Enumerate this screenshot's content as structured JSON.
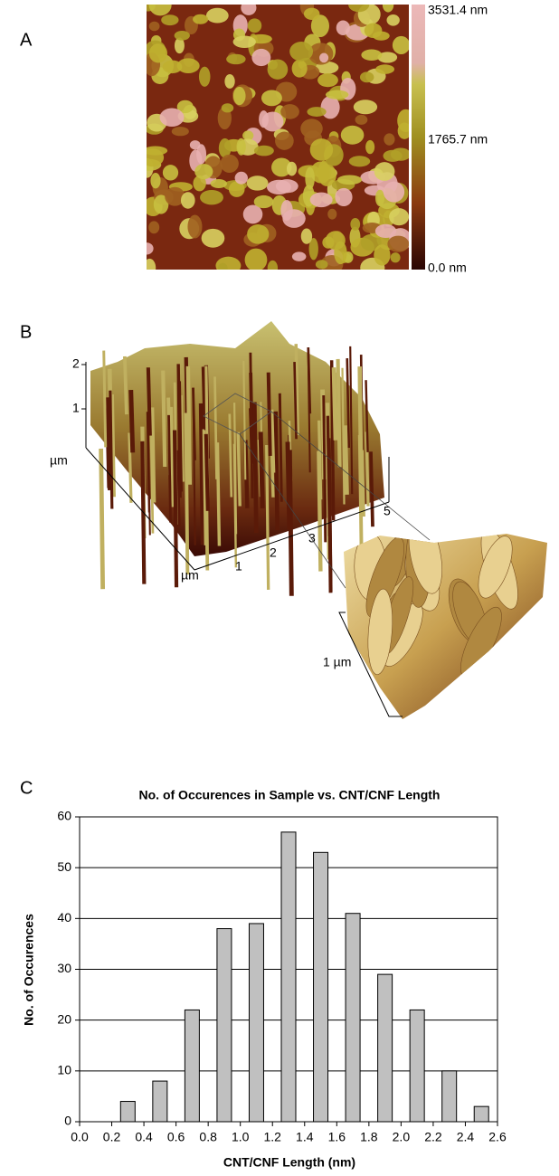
{
  "panel_a": {
    "label": "A",
    "colorbar_labels": [
      "3531.4 nm",
      "1765.7 nm",
      "0.0 nm"
    ]
  },
  "panel_b": {
    "label": "B",
    "z_ticks": [
      "2",
      "1"
    ],
    "z_unit": "µm",
    "x_unit": "µm",
    "x_ticks": [
      "1",
      "2",
      "3",
      "5"
    ],
    "inset_scale": "1 µm"
  },
  "chart_data": {
    "type": "bar",
    "panel_label": "C",
    "title": "No. of Occurences in Sample vs. CNT/CNF Length",
    "x_label": "CNT/CNF Length (nm)",
    "y_label": "No. of Occurences",
    "x": [
      0.3,
      0.5,
      0.7,
      0.9,
      1.1,
      1.3,
      1.5,
      1.7,
      1.9,
      2.1,
      2.3,
      2.5
    ],
    "values": [
      4,
      8,
      22,
      38,
      39,
      57,
      53,
      41,
      29,
      22,
      10,
      3
    ],
    "color": "#c0c0c0",
    "xlim": [
      0,
      2.6
    ],
    "xticks": [
      {
        "value": 0,
        "label": "0.0"
      },
      0.2,
      0.4,
      0.6,
      0.8,
      {
        "value": 1,
        "label": "1.0"
      },
      1.2,
      1.4,
      1.6,
      1.8,
      {
        "value": 2,
        "label": "2.0"
      },
      2.2,
      2.4,
      2.6
    ],
    "ylim": [
      0,
      60
    ],
    "yticks": [
      0,
      10,
      20,
      30,
      40,
      50,
      60
    ],
    "grid": true
  }
}
